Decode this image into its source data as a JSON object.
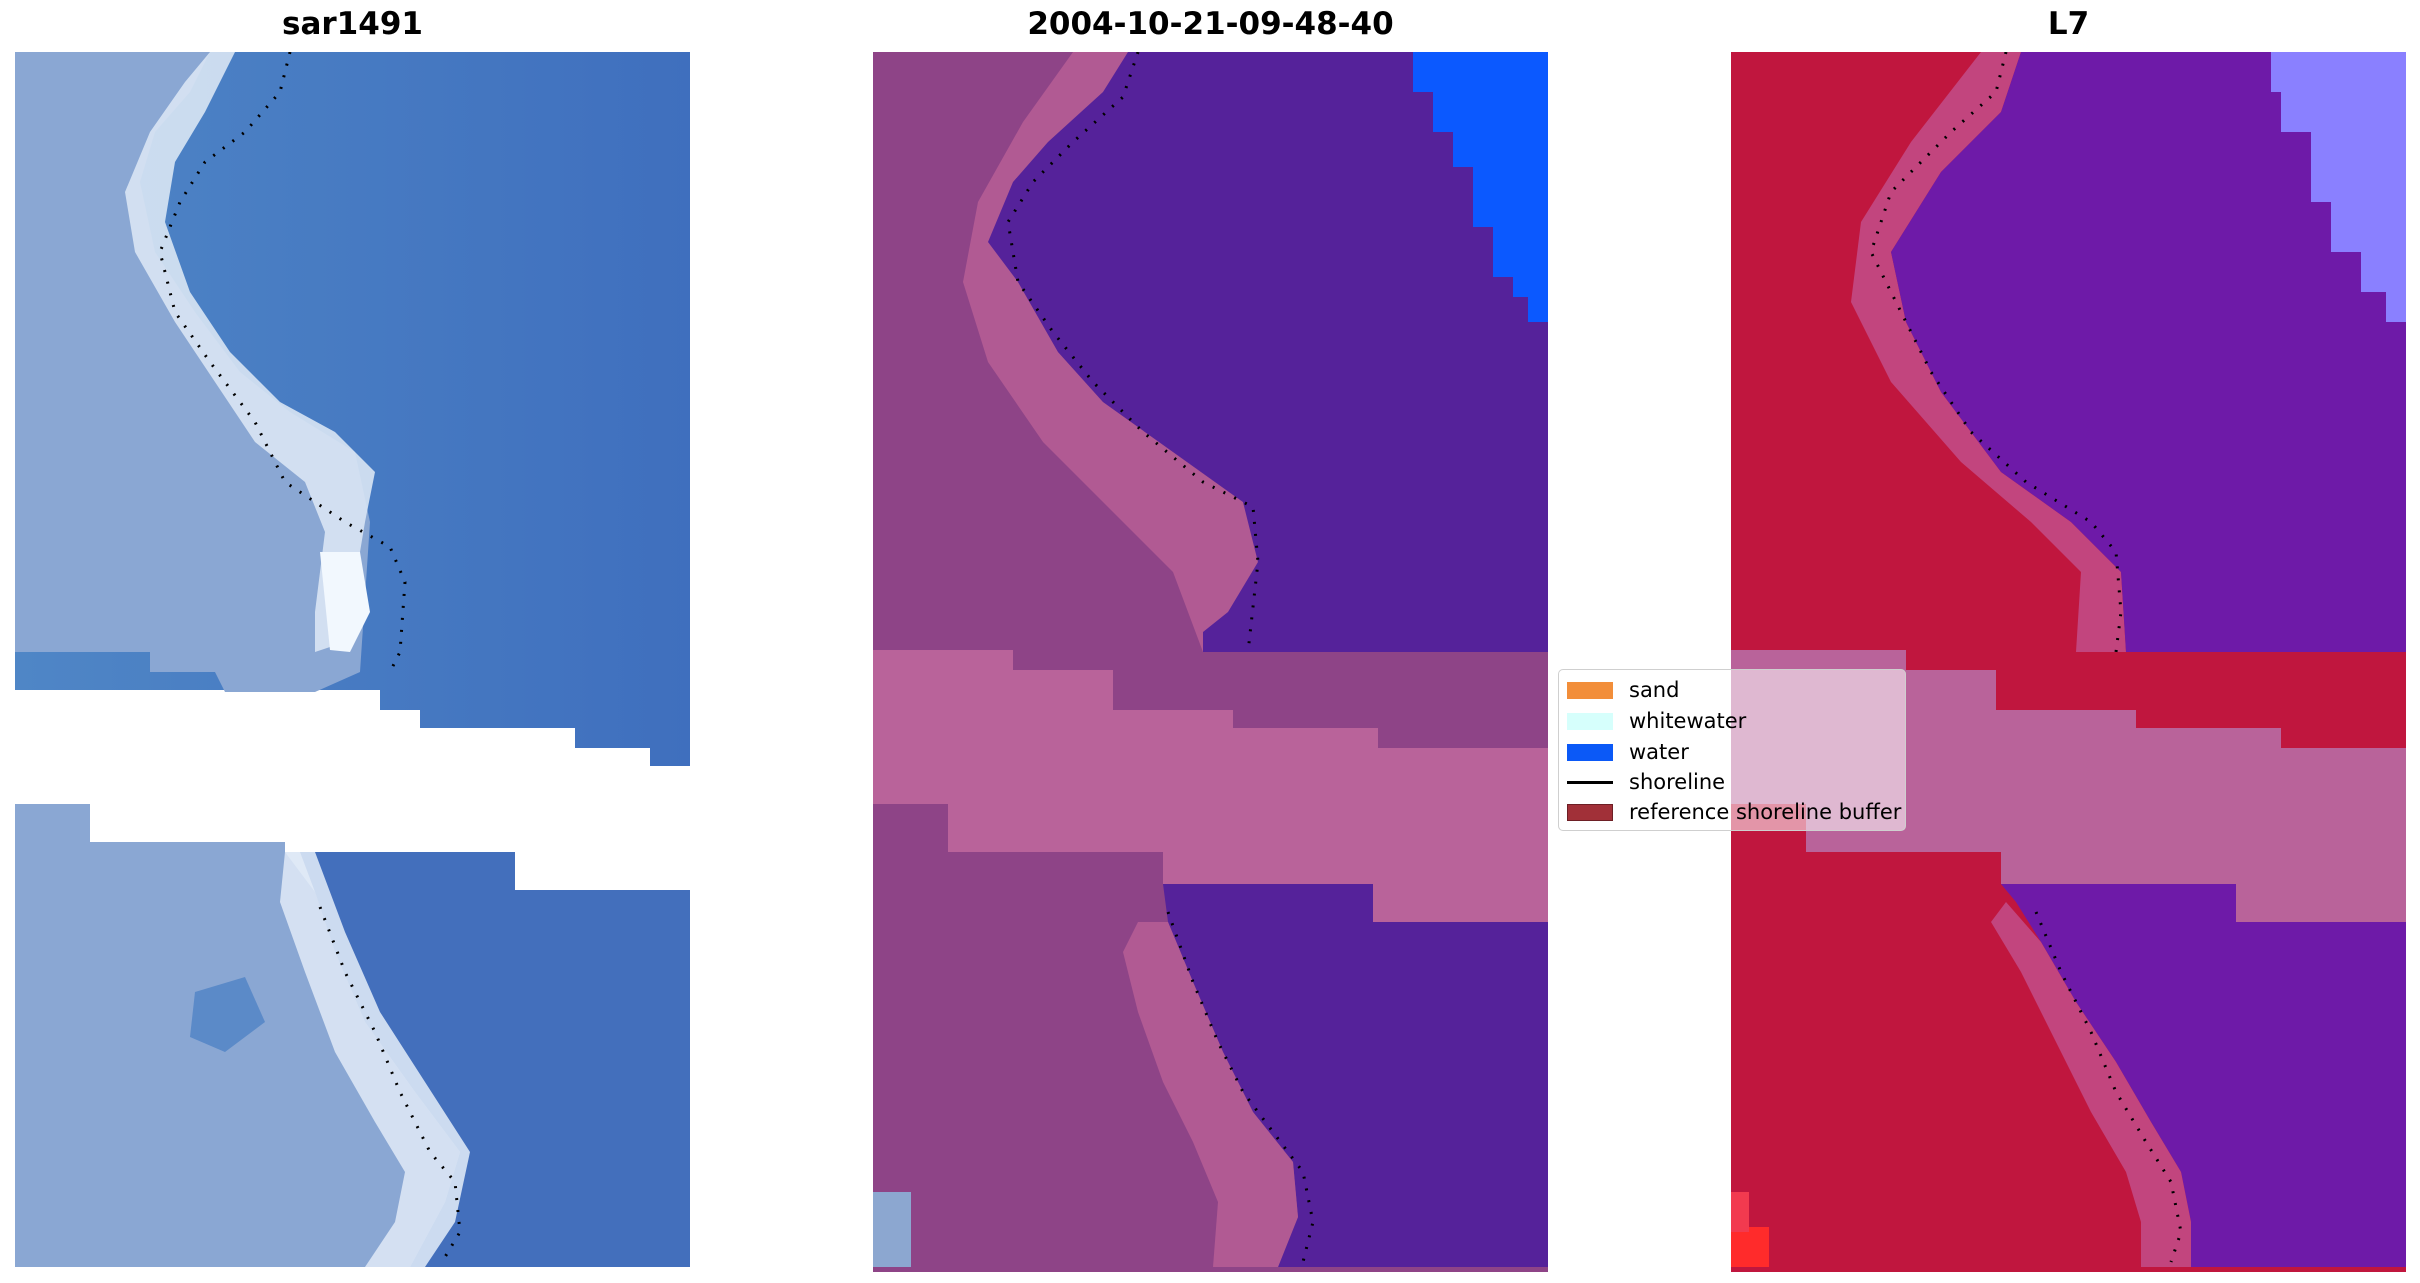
{
  "panels": [
    {
      "title": "sar1491"
    },
    {
      "title": "2004-10-21-09-48-40"
    },
    {
      "title": "L7"
    }
  ],
  "legend": {
    "items": [
      {
        "label": "sand",
        "color": "#F28E3A",
        "kind": "patch"
      },
      {
        "label": "whitewater",
        "color": "#D6FFFC",
        "kind": "patch"
      },
      {
        "label": "water",
        "color": "#0B59F7",
        "kind": "patch"
      },
      {
        "label": "shoreline",
        "color": "#000000",
        "kind": "line"
      },
      {
        "label": "reference shoreline buffer",
        "color": "#A13038",
        "kind": "patch"
      }
    ]
  },
  "colors": {
    "rgb_water": "#4B7CC4",
    "rgb_beach": "#8FA9D4",
    "rgb_whitewater": "#E4EEF8",
    "class_land": "#8E4487",
    "class_land_light": "#B5598F",
    "class_water": "#55229A",
    "class_water_bright": "#0B59FF",
    "buffer": "#B9639A",
    "l7_land": "#C0163E",
    "l7_water": "#6E1AA8",
    "l7_lavender": "#8A80FF"
  }
}
